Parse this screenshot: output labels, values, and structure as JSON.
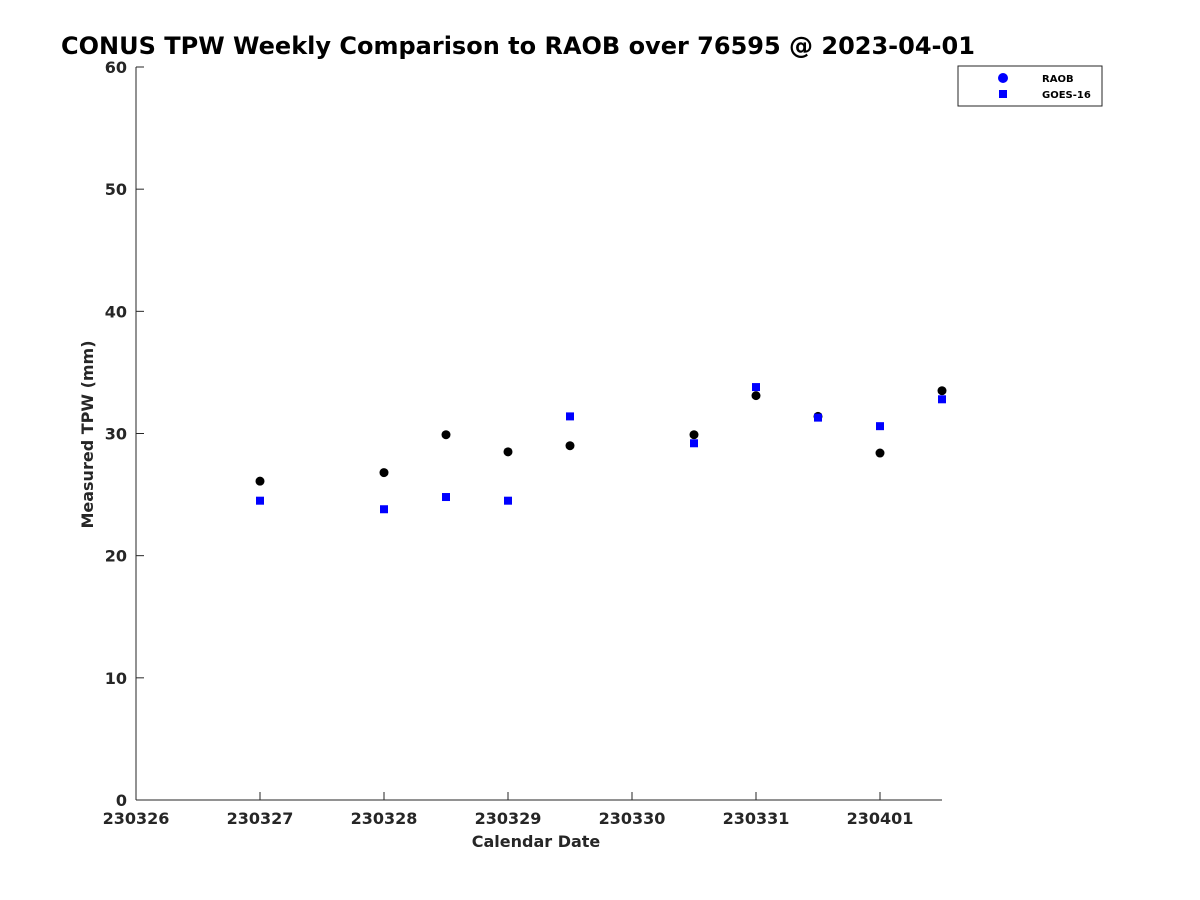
{
  "chart_data": {
    "type": "scatter",
    "title": "CONUS TPW Weekly Comparison to RAOB over 76595 @ 2023-04-01",
    "xlabel": "Calendar Date",
    "ylabel": "Measured TPW (mm)",
    "xlim": [
      "2023-03-26",
      "2023-04-01 12:00"
    ],
    "ylim": [
      0,
      60
    ],
    "x_ticks": [
      {
        "date": "2023-03-26",
        "label": "230326"
      },
      {
        "date": "2023-03-27",
        "label": "230327"
      },
      {
        "date": "2023-03-28",
        "label": "230328"
      },
      {
        "date": "2023-03-29",
        "label": "230329"
      },
      {
        "date": "2023-03-30",
        "label": "230330"
      },
      {
        "date": "2023-03-31",
        "label": "230331"
      },
      {
        "date": "2023-04-01",
        "label": "230401"
      }
    ],
    "y_ticks": [
      0,
      10,
      20,
      30,
      40,
      50,
      60
    ],
    "grid": false,
    "legend_position": "top-right",
    "series": [
      {
        "name": "RAOB",
        "marker": "circle",
        "color": "#000000",
        "legend_color": "#0000ff",
        "x": [
          "2023-03-27 00:00",
          "2023-03-28 00:00",
          "2023-03-28 12:00",
          "2023-03-29 00:00",
          "2023-03-29 12:00",
          "2023-03-30 12:00",
          "2023-03-31 00:00",
          "2023-03-31 12:00",
          "2023-04-01 00:00",
          "2023-04-01 12:00"
        ],
        "y": [
          26.1,
          26.8,
          29.9,
          28.5,
          29.0,
          29.9,
          33.1,
          31.4,
          28.4,
          33.5
        ]
      },
      {
        "name": "GOES-16",
        "marker": "square",
        "color": "#0000ff",
        "legend_color": "#0000ff",
        "x": [
          "2023-03-27 00:00",
          "2023-03-28 00:00",
          "2023-03-28 12:00",
          "2023-03-29 00:00",
          "2023-03-29 12:00",
          "2023-03-30 12:00",
          "2023-03-31 00:00",
          "2023-03-31 12:00",
          "2023-04-01 00:00",
          "2023-04-01 12:00"
        ],
        "y": [
          24.5,
          23.8,
          24.8,
          24.5,
          31.4,
          29.2,
          33.8,
          31.3,
          30.6,
          32.8
        ]
      }
    ]
  }
}
